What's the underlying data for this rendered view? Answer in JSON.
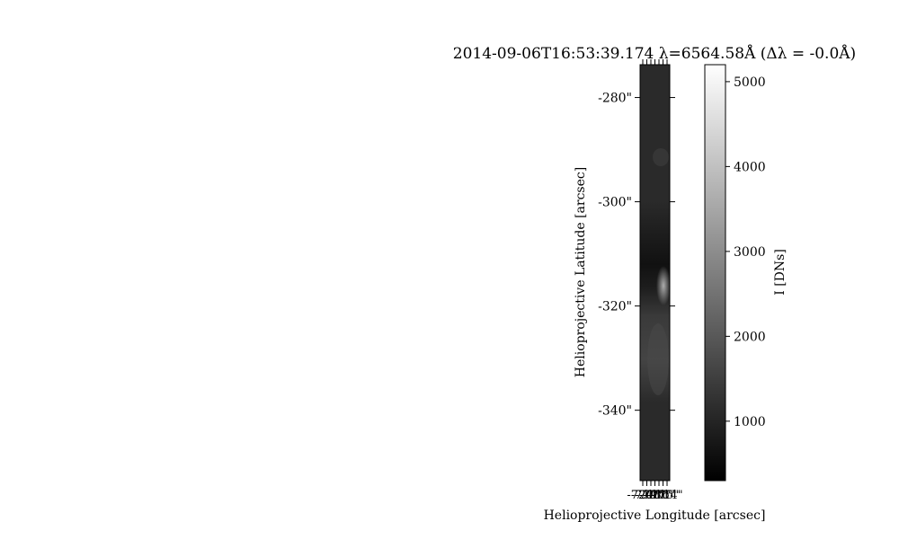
{
  "chart_data": [
    {
      "type": "heatmap",
      "title": "2014-09-06T16:53:39.174 λ=6564.58Å (Δλ = -0.0Å)",
      "xlabel": "Helioprojective Longitude [arcsec]",
      "ylabel": "Helioprojective Latitude [arcsec]",
      "x_tick_labels": [
        "-720\"",
        "-719\"",
        "-718\"",
        "-717\"",
        "-716\"",
        "-715\"",
        "-714\""
      ],
      "ylim": [
        -353.5,
        -273.7
      ],
      "y_ticks": [
        -280,
        -300,
        -320,
        -340
      ],
      "y_tick_labels": [
        "-280\"",
        "-300\"",
        "-320\"",
        "-340\""
      ],
      "colormap": "grayscale",
      "colorbar": {
        "label": "I [DNs]",
        "range": [
          300,
          5200
        ],
        "ticks": [
          1000,
          2000,
          3000,
          4000,
          5000
        ],
        "tick_labels": [
          "1000",
          "2000",
          "3000",
          "4000",
          "5000"
        ]
      }
    }
  ]
}
